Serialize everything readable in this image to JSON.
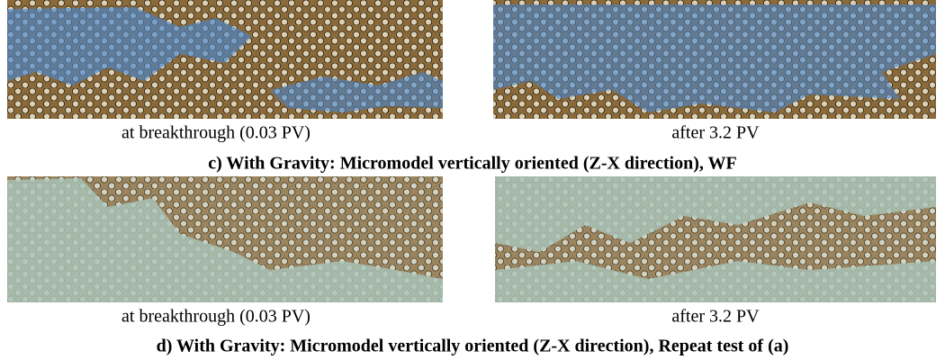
{
  "figure": {
    "rows": [
      {
        "panels": [
          {
            "caption": "at breakthrough (0.03 PV)"
          },
          {
            "caption": "after 3.2 PV"
          }
        ],
        "title": "c) With Gravity: Micromodel vertically oriented (Z-X direction), WF"
      },
      {
        "panels": [
          {
            "caption": "at breakthrough (0.03 PV)"
          },
          {
            "caption": "after 3.2 PV"
          }
        ],
        "title": "d) With Gravity: Micromodel vertically oriented (Z-X direction), Repeat test of (a)"
      }
    ]
  }
}
